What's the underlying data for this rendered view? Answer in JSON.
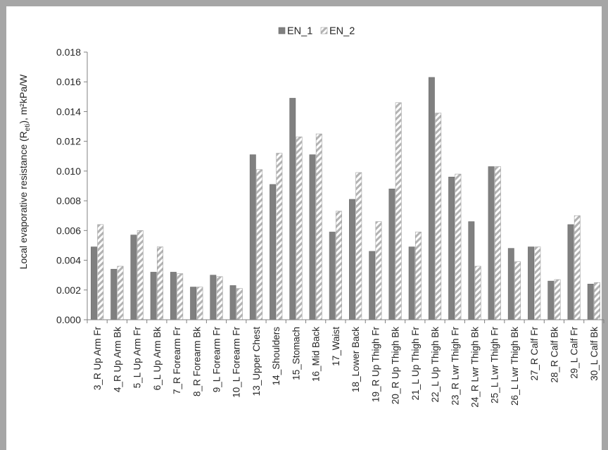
{
  "chart_data": {
    "type": "bar",
    "ylabel": {
      "prefix": "Local evaporative resistance (R",
      "subscript": "eti",
      "suffix": "), m²kPa/W"
    },
    "ylim": [
      0,
      0.018
    ],
    "yticks": [
      "0.000",
      "0.002",
      "0.004",
      "0.006",
      "0.008",
      "0.010",
      "0.012",
      "0.014",
      "0.016",
      "0.018"
    ],
    "grid": false,
    "legend_position": "top",
    "categories": [
      "3_R Up Arm Fr",
      "4_R Up Arm Bk",
      "5_L Up Arm Fr",
      "6_L Up Arm Bk",
      "7_R Forearm Fr",
      "8_R Forearm Bk",
      "9_L Forearm Fr",
      "10_L Forearm Fr",
      "13_Upper Chest",
      "14_Shoulders",
      "15_Stomach",
      "16_Mid Back",
      "17_Waist",
      "18_Lower Back",
      "19_R Up Thigh Fr",
      "20_R Up Thigh Bk",
      "21_L Up Thigh Fr",
      "22_L Up Thigh Bk",
      "23_R Lwr Thigh Fr",
      "24_R Lwr Thigh Bk",
      "25_L Lwr Thigh Fr",
      "26_L Lwr Thigh Bk",
      "27_R Calf Fr",
      "28_R Calf Bk",
      "29_L Calf Fr",
      "30_L Calf Bk"
    ],
    "series": [
      {
        "name": "EN_1",
        "color": "#808080",
        "values": [
          0.0049,
          0.0034,
          0.0057,
          0.0032,
          0.0032,
          0.0022,
          0.003,
          0.0023,
          0.0111,
          0.0091,
          0.0149,
          0.0111,
          0.0059,
          0.0081,
          0.0046,
          0.0088,
          0.0049,
          0.0163,
          0.0096,
          0.0066,
          0.0103,
          0.0048,
          0.0049,
          0.0026,
          0.0064,
          0.0024
        ]
      },
      {
        "name": "EN_2",
        "color": "#bfbfbf",
        "values": [
          0.0064,
          0.0036,
          0.006,
          0.0049,
          0.0031,
          0.0022,
          0.0029,
          0.0021,
          0.0101,
          0.0112,
          0.0123,
          0.0125,
          0.0073,
          0.0099,
          0.0066,
          0.0146,
          0.0059,
          0.0139,
          0.0098,
          0.0036,
          0.0103,
          0.0039,
          0.0049,
          0.0027,
          0.007,
          0.0025
        ]
      }
    ]
  }
}
